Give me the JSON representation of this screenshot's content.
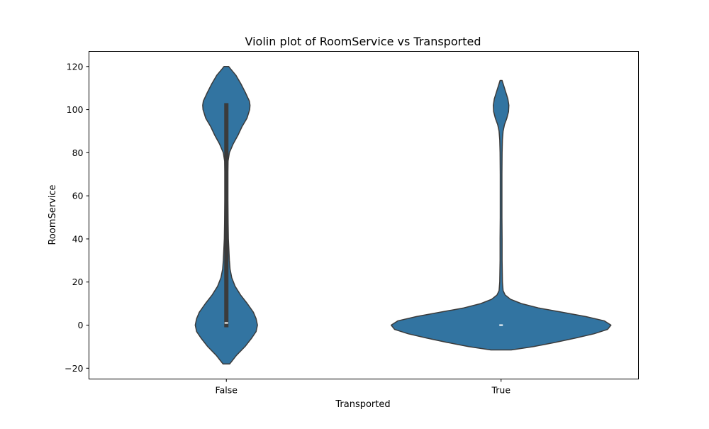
{
  "chart_data": {
    "type": "violin",
    "title": "Violin plot of RoomService vs Transported",
    "xlabel": "Transported",
    "ylabel": "RoomService",
    "categories": [
      "False",
      "True"
    ],
    "ylim": [
      -25,
      127
    ],
    "yticks": [
      -20,
      0,
      20,
      40,
      60,
      80,
      100,
      120
    ],
    "ytick_labels": [
      "−20",
      "0",
      "20",
      "40",
      "60",
      "80",
      "100",
      "120"
    ],
    "grid": false,
    "colors": {
      "violin_fill": "#3274a1",
      "violin_edge": "#3b3b3b",
      "box": "#3b3b3b",
      "median": "#ffffff"
    },
    "series": [
      {
        "category": "False",
        "range": [
          -18,
          120
        ],
        "q1": -1,
        "median": 1,
        "q3": 103,
        "density": [
          [
            -18,
            0.1
          ],
          [
            -14,
            0.3
          ],
          [
            -10,
            0.55
          ],
          [
            -6,
            0.75
          ],
          [
            -3,
            0.88
          ],
          [
            0,
            0.92
          ],
          [
            3,
            0.88
          ],
          [
            6,
            0.8
          ],
          [
            10,
            0.62
          ],
          [
            14,
            0.42
          ],
          [
            18,
            0.26
          ],
          [
            22,
            0.16
          ],
          [
            26,
            0.11
          ],
          [
            30,
            0.09
          ],
          [
            40,
            0.06
          ],
          [
            50,
            0.05
          ],
          [
            60,
            0.04
          ],
          [
            70,
            0.04
          ],
          [
            76,
            0.05
          ],
          [
            80,
            0.09
          ],
          [
            84,
            0.2
          ],
          [
            88,
            0.34
          ],
          [
            92,
            0.46
          ],
          [
            96,
            0.61
          ],
          [
            100,
            0.69
          ],
          [
            102,
            0.7
          ],
          [
            104,
            0.68
          ],
          [
            108,
            0.56
          ],
          [
            112,
            0.43
          ],
          [
            116,
            0.28
          ],
          [
            119,
            0.12
          ],
          [
            120,
            0.07
          ]
        ]
      },
      {
        "category": "True",
        "range": [
          -11.5,
          113.5
        ],
        "q1": 0,
        "median": 0,
        "q3": 0,
        "density": [
          [
            -11.5,
            0.3
          ],
          [
            -10,
            0.95
          ],
          [
            -8,
            1.6
          ],
          [
            -6,
            2.2
          ],
          [
            -4,
            2.75
          ],
          [
            -2,
            3.15
          ],
          [
            0,
            3.25
          ],
          [
            2,
            3.05
          ],
          [
            4,
            2.5
          ],
          [
            6,
            1.8
          ],
          [
            8,
            1.1
          ],
          [
            10,
            0.6
          ],
          [
            12,
            0.28
          ],
          [
            14,
            0.12
          ],
          [
            16,
            0.06
          ],
          [
            20,
            0.04
          ],
          [
            30,
            0.03
          ],
          [
            40,
            0.03
          ],
          [
            50,
            0.025
          ],
          [
            60,
            0.025
          ],
          [
            70,
            0.025
          ],
          [
            80,
            0.03
          ],
          [
            86,
            0.04
          ],
          [
            90,
            0.06
          ],
          [
            93,
            0.1
          ],
          [
            96,
            0.17
          ],
          [
            99,
            0.22
          ],
          [
            102,
            0.23
          ],
          [
            105,
            0.2
          ],
          [
            108,
            0.14
          ],
          [
            111,
            0.08
          ],
          [
            113.5,
            0.03
          ]
        ]
      }
    ]
  }
}
